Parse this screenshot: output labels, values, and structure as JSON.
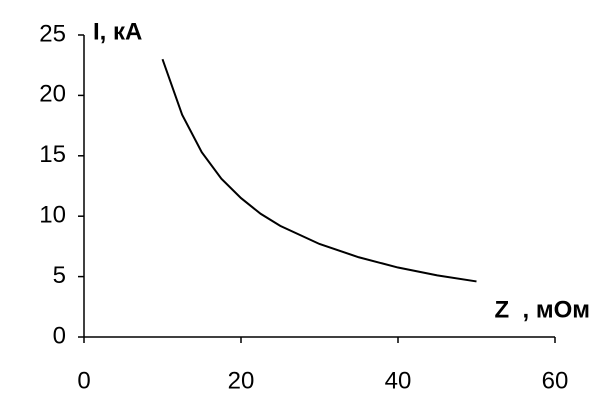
{
  "chart_data": {
    "type": "line",
    "xlabel": "Z  , мОм",
    "ylabel": "I, кА",
    "x": [
      10,
      12.5,
      15,
      17.5,
      20,
      22.5,
      25,
      30,
      35,
      40,
      45,
      50
    ],
    "series": [
      {
        "color": "#000000",
        "values": [
          23,
          18.4,
          15.3,
          13.1,
          11.5,
          10.2,
          9.2,
          7.7,
          6.6,
          5.75,
          5.1,
          4.6
        ]
      }
    ],
    "xlim": [
      0,
      60
    ],
    "xticks": [
      0,
      20,
      40,
      60
    ],
    "ylim": [
      0,
      25
    ],
    "yticks": [
      0,
      5,
      10,
      15,
      20,
      25
    ],
    "grid": false
  }
}
